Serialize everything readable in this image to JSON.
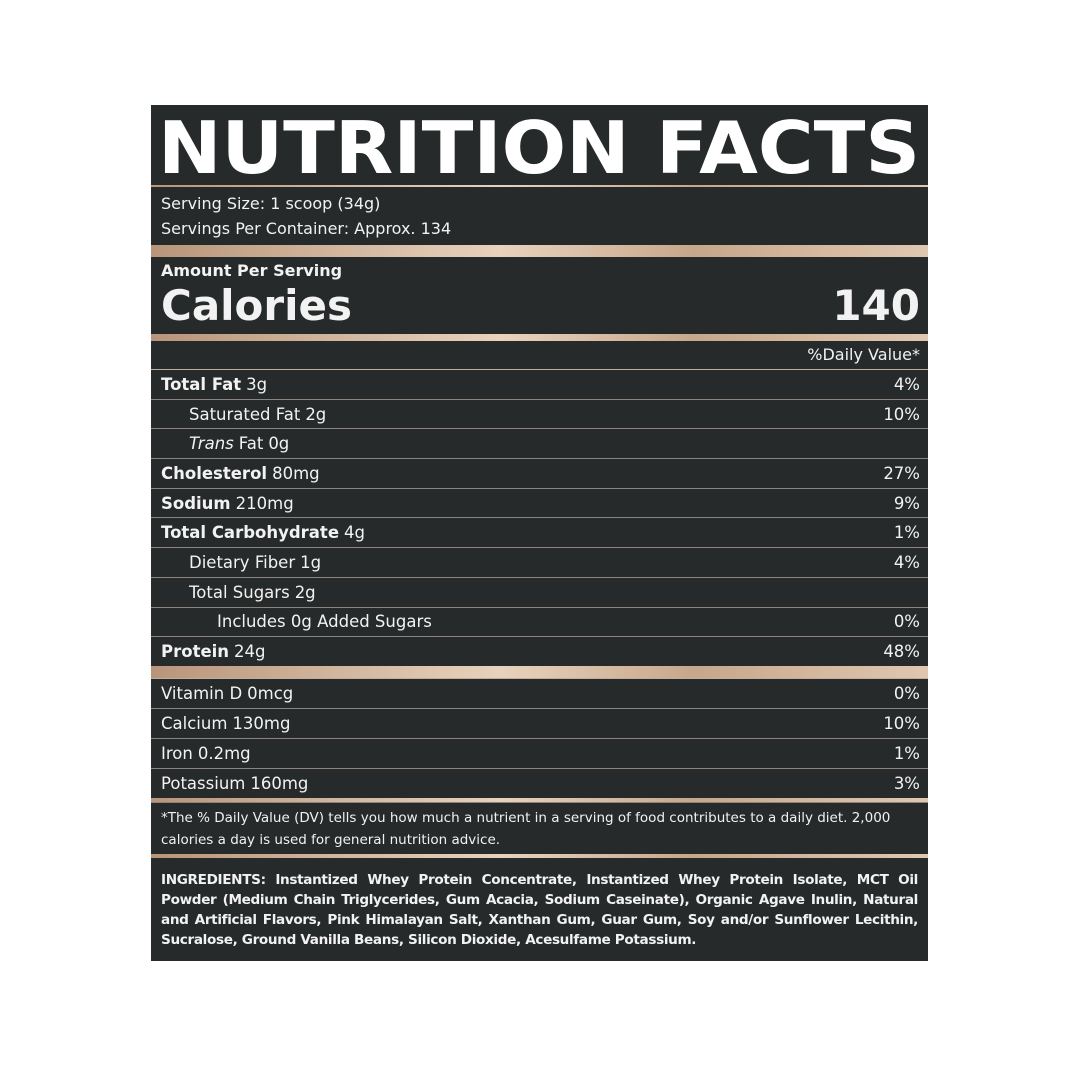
{
  "header": {
    "title": "NUTRITION FACTS"
  },
  "serving": {
    "size": "Serving Size: 1 scoop (34g)",
    "per_container": "Servings Per Container: Approx. 134"
  },
  "calories": {
    "heading": "Amount Per Serving",
    "label": "Calories",
    "value": "140"
  },
  "daily_value_header": "%Daily Value*",
  "nutrients": [
    {
      "name": "Total Fat",
      "amount": "3g",
      "dv": "4%",
      "bold": true,
      "indent": 0
    },
    {
      "name": "Saturated Fat",
      "amount": "2g",
      "dv": "10%",
      "bold": false,
      "indent": 1
    },
    {
      "italic_prefix": "Trans",
      "name": "Fat",
      "amount": "0g",
      "bold": false,
      "indent": 1
    },
    {
      "name": "Cholesterol",
      "amount": "80mg",
      "dv": "27%",
      "bold": true,
      "indent": 0
    },
    {
      "name": "Sodium",
      "amount": "210mg",
      "dv": "9%",
      "bold": true,
      "indent": 0
    },
    {
      "name": "Total Carbohydrate",
      "amount": "4g",
      "dv": "1%",
      "bold": true,
      "indent": 0
    },
    {
      "name": "Dietary Fiber",
      "amount": "1g",
      "dv": "4%",
      "bold": false,
      "indent": 1
    },
    {
      "name": "Total Sugars",
      "amount": "2g",
      "bold": false,
      "indent": 1
    },
    {
      "name": "Includes 0g Added Sugars",
      "dv": "0%",
      "bold": false,
      "indent": 2
    },
    {
      "name": "Protein",
      "amount": "24g",
      "dv": "48%",
      "bold": true,
      "indent": 0
    }
  ],
  "vitamins": [
    {
      "name": "Vitamin D",
      "amount": "0mcg",
      "dv": "0%"
    },
    {
      "name": "Calcium",
      "amount": "130mg",
      "dv": "10%"
    },
    {
      "name": "Iron",
      "amount": "0.2mg",
      "dv": "1%"
    },
    {
      "name": "Potassium",
      "amount": "160mg",
      "dv": "3%"
    }
  ],
  "footnote": "*The % Daily Value (DV) tells you how much a nutrient in a serving of food contributes to a daily diet. 2,000 calories a day is used for general nutrition advice.",
  "ingredients": "INGREDIENTS: Instantized Whey Protein Concentrate, Instantized Whey Protein Isolate, MCT Oil Powder (Medium Chain Triglycerides, Gum Acacia, Sodium Caseinate), Organic Agave Inulin, Natural and Artificial Flavors, Pink Himalayan Salt, Xanthan Gum, Guar Gum, Soy and/or Sunflower Lecithin, Sucralose, Ground Vanilla Beans, Silicon Dioxide, Acesulfame Potassium."
}
